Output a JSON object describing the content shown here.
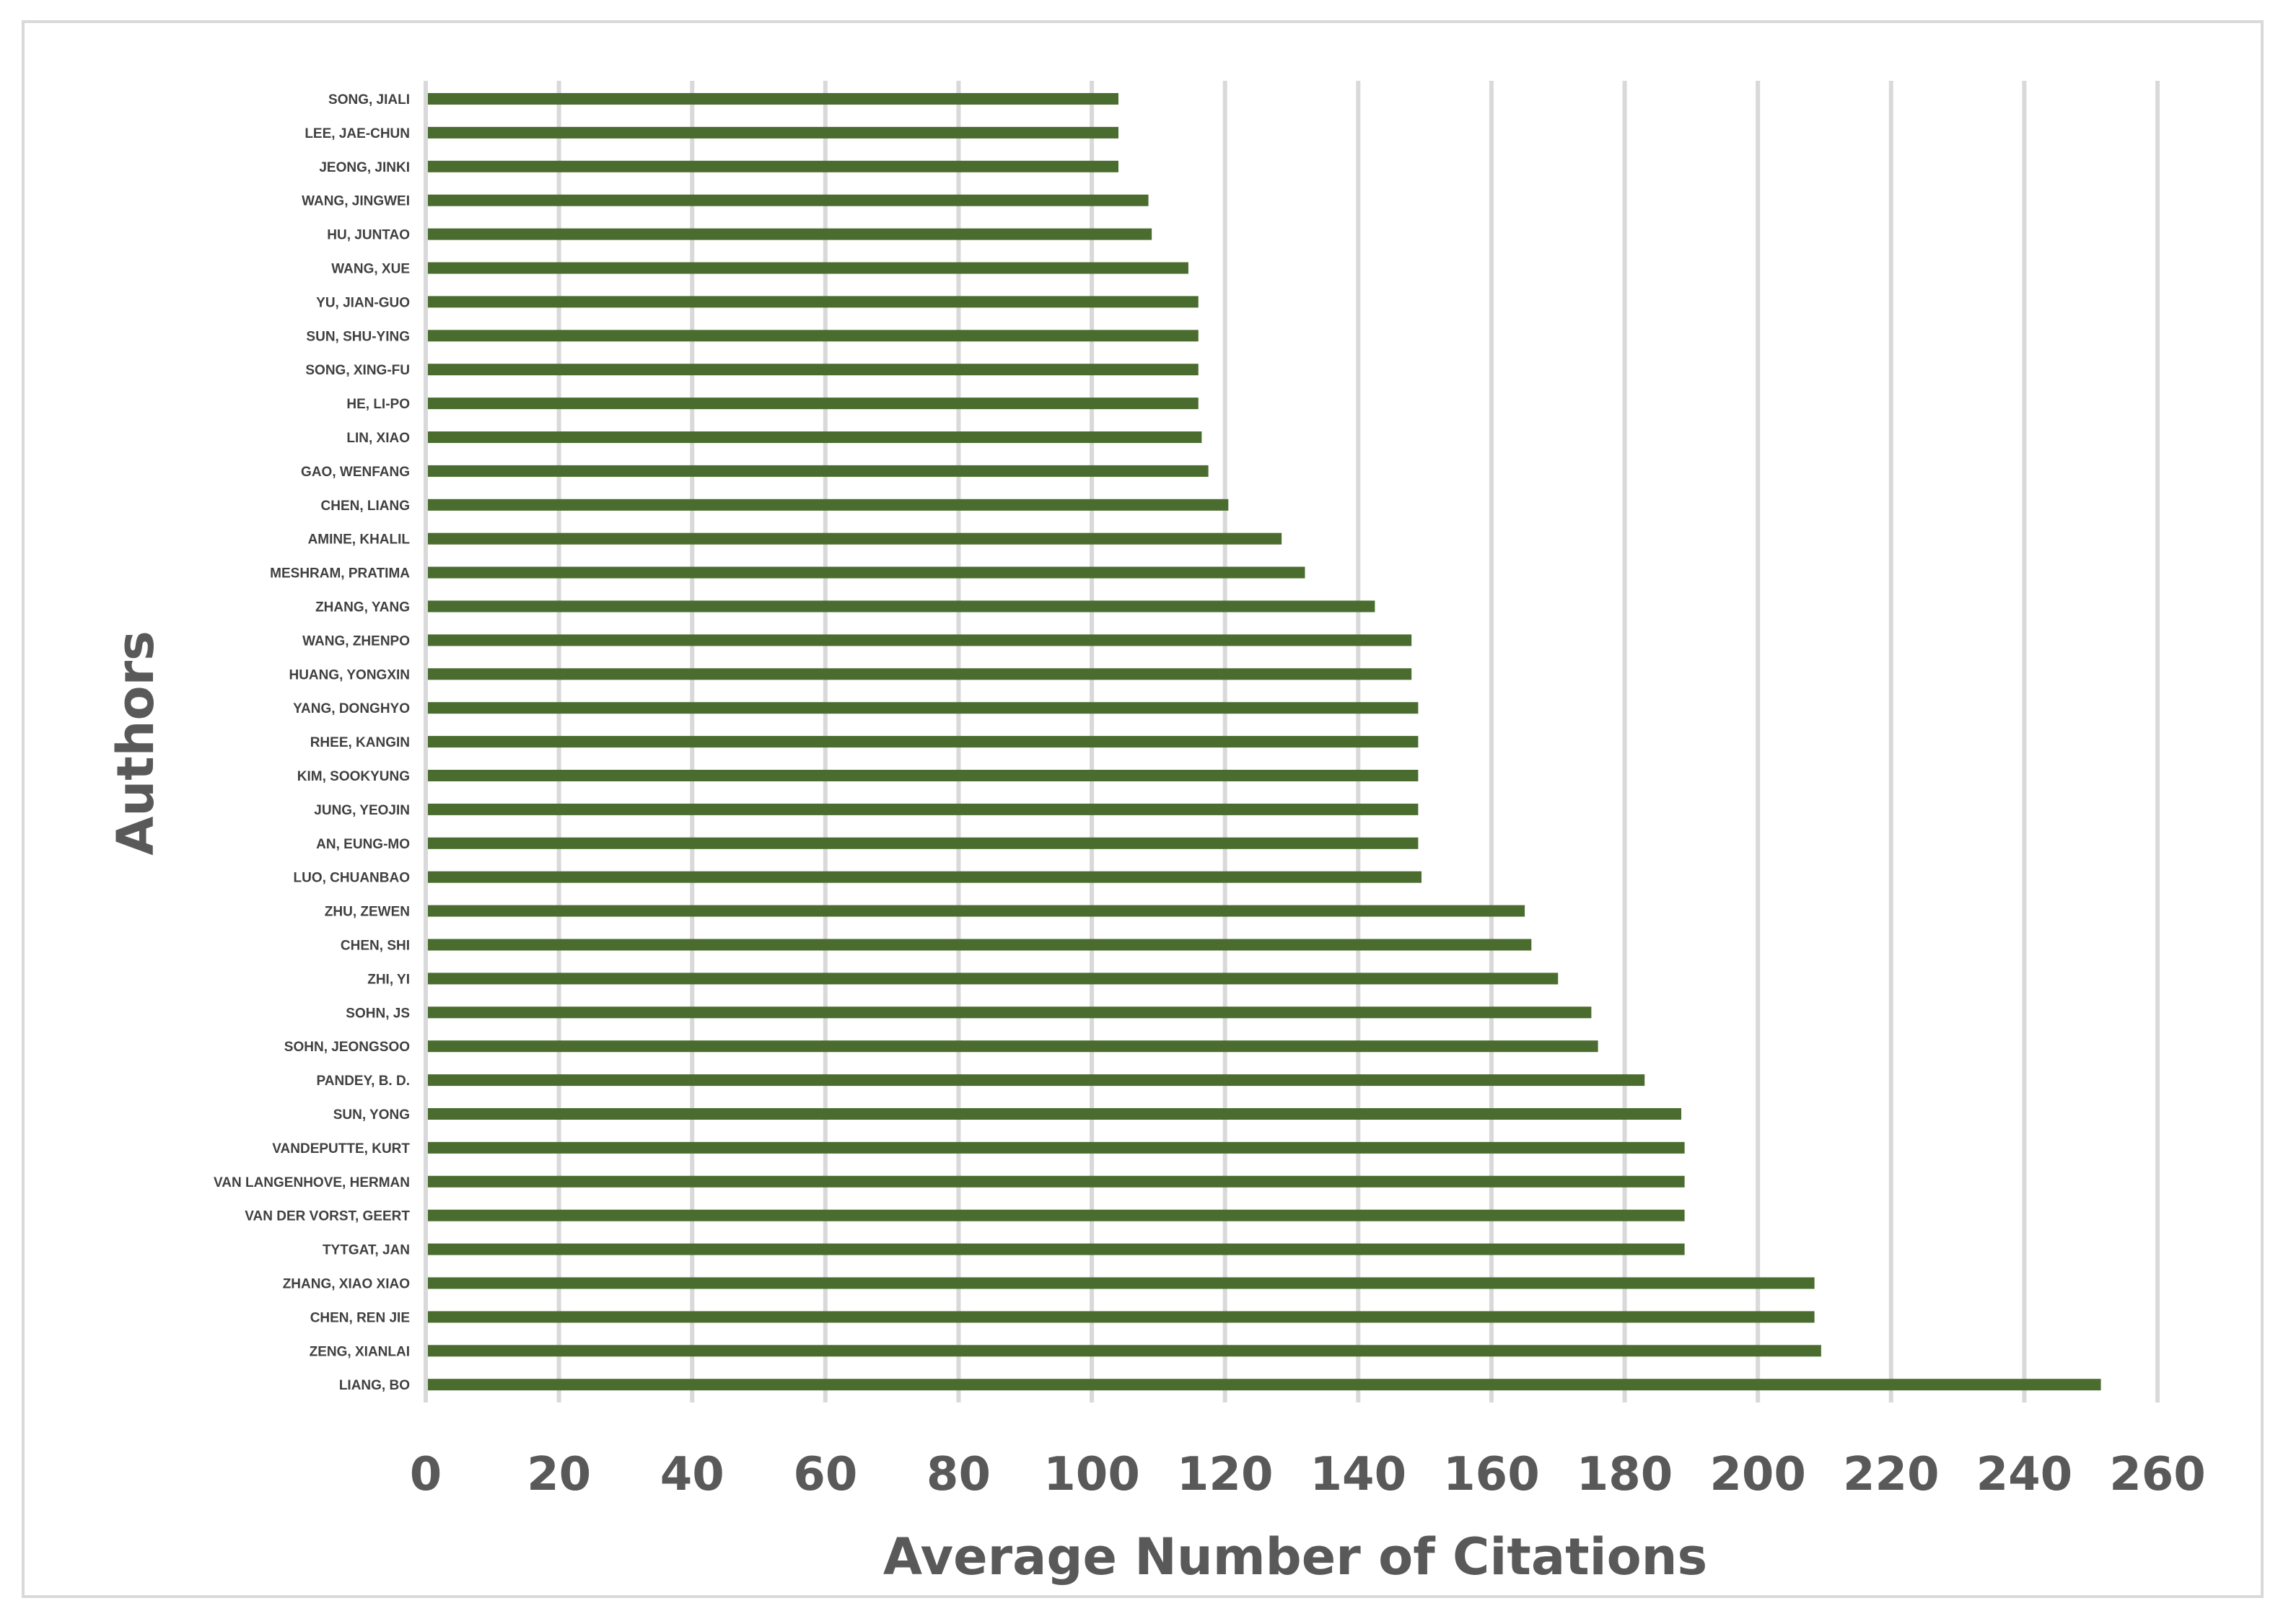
{
  "chart_data": {
    "type": "bar",
    "orientation": "horizontal",
    "xlabel": "Average Number of Citations",
    "ylabel": "Authors",
    "xlim": [
      0,
      260
    ],
    "xticks": [
      0,
      20,
      40,
      60,
      80,
      100,
      120,
      140,
      160,
      180,
      200,
      220,
      240,
      260
    ],
    "grid": true,
    "colors": {
      "bar": "#4a6d2f",
      "grid": "#d9d9d9",
      "text": "#595959"
    },
    "categories": [
      "SONG, JIALI",
      "LEE, JAE-CHUN",
      "JEONG, JINKI",
      "WANG, JINGWEI",
      "HU, JUNTAO",
      "WANG, XUE",
      "YU, JIAN-GUO",
      "SUN, SHU-YING",
      "SONG, XING-FU",
      "HE, LI-PO",
      "LIN, XIAO",
      "GAO, WENFANG",
      "CHEN, LIANG",
      "AMINE, KHALIL",
      "MESHRAM, PRATIMA",
      "ZHANG, YANG",
      "WANG, ZHENPO",
      "HUANG, YONGXIN",
      "YANG, DONGHYO",
      "RHEE, KANGIN",
      "KIM, SOOKYUNG",
      "JUNG, YEOJIN",
      "AN, EUNG-MO",
      "LUO, CHUANBAO",
      "ZHU, ZEWEN",
      "CHEN, SHI",
      "ZHI, YI",
      "SOHN, JS",
      "SOHN, JEONGSOO",
      "PANDEY, B. D.",
      "SUN, YONG",
      "VANDEPUTTE, KURT",
      "VAN LANGENHOVE, HERMAN",
      "VAN DER VORST, GEERT",
      "TYTGAT, JAN",
      "ZHANG, XIAO XIAO",
      "CHEN, REN JIE",
      "ZENG, XIANLAI",
      "LIANG, BO"
    ],
    "values": [
      104,
      104,
      104,
      108.5,
      109,
      114.5,
      116,
      116,
      116,
      116,
      116.5,
      117.5,
      120.5,
      128.5,
      132,
      142.5,
      148,
      148,
      149,
      149,
      149,
      149,
      149,
      149.5,
      165,
      166,
      170,
      175,
      176,
      183,
      188.5,
      189,
      189,
      189,
      189,
      208.5,
      208.5,
      209.5,
      251.5
    ]
  }
}
